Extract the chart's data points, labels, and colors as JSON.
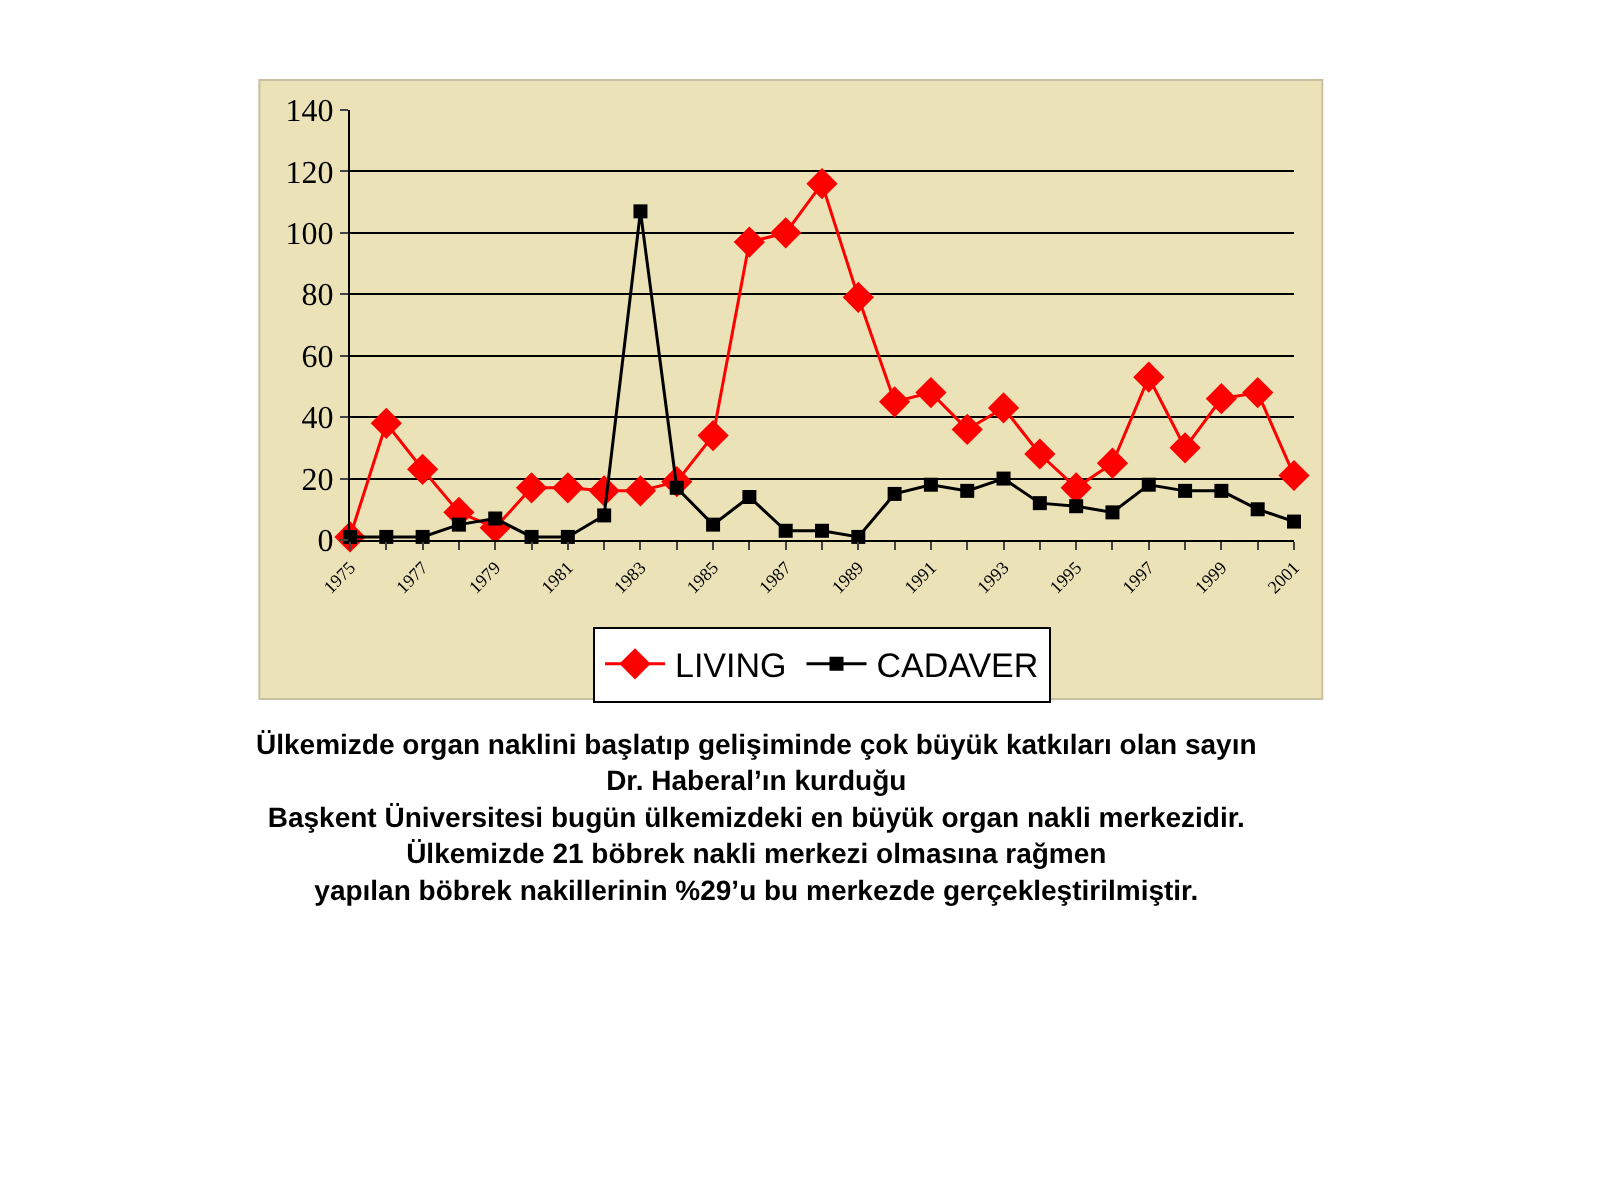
{
  "chart_data": {
    "type": "line",
    "categories": [
      "1975",
      null,
      "1977",
      null,
      "1979",
      null,
      "1981",
      null,
      "1983",
      null,
      "1985",
      null,
      "1987",
      null,
      "1989",
      null,
      "1991",
      null,
      "1993",
      null,
      "1995",
      null,
      "1997",
      null,
      "1999",
      null,
      "2001"
    ],
    "series": [
      {
        "name": "LIVING",
        "color": "#ff0000",
        "marker": "diamond",
        "values": [
          1,
          38,
          23,
          9,
          4,
          17,
          17,
          16,
          16,
          19,
          34,
          97,
          100,
          116,
          79,
          45,
          48,
          36,
          43,
          28,
          17,
          25,
          53,
          30,
          46,
          48,
          21
        ]
      },
      {
        "name": "CADAVER",
        "color": "#000000",
        "marker": "square",
        "values": [
          1,
          1,
          1,
          5,
          7,
          1,
          1,
          8,
          107,
          17,
          5,
          14,
          3,
          3,
          1,
          15,
          18,
          16,
          20,
          12,
          11,
          9,
          18,
          16,
          16,
          10,
          6
        ]
      }
    ],
    "ylim": [
      0,
      140
    ],
    "yticks": [
      0,
      20,
      40,
      60,
      80,
      100,
      120,
      140
    ],
    "grid": "y",
    "legend": "bottom",
    "annotations": [
      "Ülkemizde organ naklini başlatıp gelişiminde çok büyük katkıları olan sayın\nDr. Haberal’ın kurduğu\nBaşkent Üniversitesi bugün ülkemizdeki en büyük organ nakli merkezidir.\nÜlkemizde 21 böbrek nakli merkezi olmasına rağmen\nyapılan böbrek nakillerinin %29’u bu merkezde gerçekleştirilmiştir."
    ]
  }
}
